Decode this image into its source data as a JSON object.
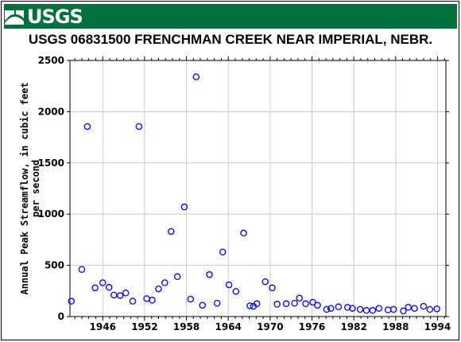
{
  "branding": {
    "logo_text": "USGS",
    "banner_color": "#00703c"
  },
  "chart_data": {
    "type": "scatter",
    "title": "USGS 06831500 FRENCHMAN CREEK NEAR IMPERIAL, NEBR.",
    "ylabel": "Annual Peak Streamflow, in cubic feet per second",
    "ylabel_lines": [
      "Annual Peak Streamflow, in cubic feet",
      "per second"
    ],
    "xlabel": "",
    "xlim": [
      1941.3,
      1995.2
    ],
    "ylim": [
      0,
      2500
    ],
    "x_ticks": [
      1946,
      1952,
      1958,
      1964,
      1970,
      1976,
      1982,
      1988,
      1994
    ],
    "y_ticks": [
      0,
      500,
      1000,
      1500,
      2000,
      2500
    ],
    "grid": true,
    "marker": "open-circle",
    "marker_color": "#0000ff",
    "series": [
      {
        "x": [
          1941.5,
          1943,
          1943.8,
          1944.9,
          1946,
          1946.9,
          1947.6,
          1948.5,
          1949.3,
          1950.3,
          1951.2,
          1952.3,
          1953.1,
          1954,
          1954.9,
          1955.8,
          1956.7,
          1957.7,
          1958.6,
          1959.4,
          1960.3,
          1961.3,
          1962.4,
          1963.2,
          1964.1,
          1965.1,
          1966.2,
          1967.1,
          1967.6,
          1968.1,
          1969.3,
          1970.3,
          1971,
          1972.3,
          1973.5,
          1974.2,
          1975.1,
          1976.1,
          1976.8,
          1978.1,
          1978.7,
          1979.8,
          1981.1,
          1981.8,
          1982.9,
          1983.8,
          1984.7,
          1985.6,
          1986.9,
          1987.7,
          1989.1,
          1989.8,
          1990.7,
          1992,
          1992.9,
          1993.9
        ],
        "y": [
          150,
          460,
          1855,
          280,
          330,
          285,
          210,
          205,
          230,
          150,
          1855,
          175,
          160,
          270,
          330,
          830,
          390,
          1070,
          170,
          2340,
          110,
          410,
          130,
          630,
          310,
          245,
          815,
          105,
          100,
          125,
          340,
          280,
          120,
          125,
          130,
          180,
          125,
          140,
          110,
          70,
          80,
          95,
          90,
          80,
          70,
          60,
          60,
          80,
          65,
          70,
          55,
          90,
          80,
          100,
          70,
          75
        ]
      }
    ]
  }
}
